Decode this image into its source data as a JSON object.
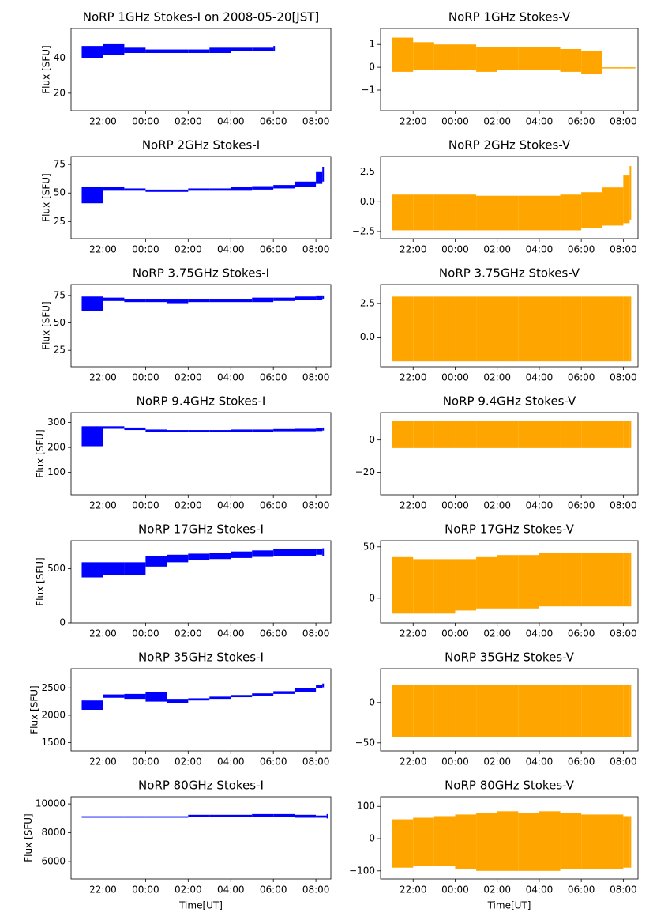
{
  "chart_data": [
    {
      "type": "band",
      "title": "NoRP 1GHz Stokes-I on 2008-05-20[JST]",
      "ylabel": "Flux [SFU]",
      "color": "#0000ff",
      "x": [
        21,
        22,
        23,
        24,
        25,
        26,
        27,
        28,
        29,
        30
      ],
      "low": [
        40,
        42,
        43,
        43,
        43,
        43,
        43,
        44,
        44,
        44
      ],
      "high": [
        47,
        48,
        46,
        45,
        45,
        45,
        46,
        46,
        46,
        47
      ],
      "xlim": [
        20.5,
        32.7
      ],
      "xticks": [
        {
          "value": 22,
          "label": "22:00"
        },
        {
          "value": 24,
          "label": "00:00"
        },
        {
          "value": 26,
          "label": "02:00"
        },
        {
          "value": 28,
          "label": "04:00"
        },
        {
          "value": 30,
          "label": "06:00"
        },
        {
          "value": 32,
          "label": "08:00"
        }
      ],
      "ylim": [
        10,
        57
      ],
      "yticks": [
        20,
        40
      ]
    },
    {
      "type": "band",
      "title": "NoRP 1GHz Stokes-V",
      "color": "#ffa500",
      "x": [
        21,
        22,
        23,
        24,
        25,
        26,
        27,
        28,
        29,
        30,
        31,
        32,
        32.5
      ],
      "low": [
        -0.2,
        -0.1,
        -0.1,
        -0.1,
        -0.2,
        -0.1,
        -0.1,
        -0.1,
        -0.2,
        -0.3,
        0,
        0,
        0
      ],
      "high": [
        1.3,
        1.1,
        1,
        1,
        0.9,
        0.9,
        0.9,
        0.9,
        0.8,
        0.7,
        0,
        0,
        0
      ],
      "xlim": [
        20.45,
        32.7
      ],
      "xticks": [
        {
          "value": 22,
          "label": "22:00"
        },
        {
          "value": 24,
          "label": "00:00"
        },
        {
          "value": 26,
          "label": "02:00"
        },
        {
          "value": 28,
          "label": "04:00"
        },
        {
          "value": 30,
          "label": "06:00"
        },
        {
          "value": 32,
          "label": "08:00"
        }
      ],
      "ylim": [
        -1.9,
        1.7
      ],
      "yticks": [
        {
          "value": -1,
          "label": "−1"
        },
        0,
        1
      ]
    },
    {
      "type": "band",
      "title": "NoRP 2GHz Stokes-I",
      "ylabel": "Flux [SFU]",
      "color": "#0000ff",
      "x": [
        21,
        22,
        23,
        24,
        25,
        26,
        27,
        28,
        29,
        30,
        31,
        32,
        32.3
      ],
      "low": [
        41,
        52,
        52,
        51,
        51,
        52,
        52,
        52,
        53,
        54,
        55,
        58,
        60
      ],
      "high": [
        55,
        55,
        54,
        53,
        53,
        54,
        54,
        55,
        56,
        57,
        60,
        69,
        73
      ],
      "xlim": [
        20.5,
        32.7
      ],
      "xticks": [
        {
          "value": 22,
          "label": "22:00"
        },
        {
          "value": 24,
          "label": "00:00"
        },
        {
          "value": 26,
          "label": "02:00"
        },
        {
          "value": 28,
          "label": "04:00"
        },
        {
          "value": 30,
          "label": "06:00"
        },
        {
          "value": 32,
          "label": "08:00"
        }
      ],
      "ylim": [
        10,
        82
      ],
      "yticks": [
        25,
        50,
        75
      ]
    },
    {
      "type": "band",
      "title": "NoRP 2GHz Stokes-V",
      "color": "#ffa500",
      "x": [
        21,
        22,
        23,
        24,
        25,
        26,
        27,
        28,
        29,
        30,
        31,
        32,
        32.3
      ],
      "low": [
        -2.4,
        -2.4,
        -2.4,
        -2.4,
        -2.4,
        -2.4,
        -2.4,
        -2.4,
        -2.4,
        -2.2,
        -2.0,
        -1.8,
        -1.5
      ],
      "high": [
        0.6,
        0.6,
        0.6,
        0.6,
        0.5,
        0.5,
        0.5,
        0.5,
        0.6,
        0.8,
        1.2,
        2.2,
        3.0
      ],
      "xlim": [
        20.45,
        32.7
      ],
      "xticks": [
        {
          "value": 22,
          "label": "22:00"
        },
        {
          "value": 24,
          "label": "00:00"
        },
        {
          "value": 26,
          "label": "02:00"
        },
        {
          "value": 28,
          "label": "04:00"
        },
        {
          "value": 30,
          "label": "06:00"
        },
        {
          "value": 32,
          "label": "08:00"
        }
      ],
      "ylim": [
        -3.1,
        3.8
      ],
      "yticks": [
        {
          "value": -2.5,
          "label": "−2.5"
        },
        {
          "value": 0,
          "label": "0.0"
        },
        2.5
      ]
    },
    {
      "type": "band",
      "title": "NoRP 3.75GHz Stokes-I",
      "ylabel": "Flux [SFU]",
      "color": "#0000ff",
      "x": [
        21,
        22,
        23,
        24,
        25,
        26,
        27,
        28,
        29,
        30,
        31,
        32,
        32.3
      ],
      "low": [
        61,
        70,
        69,
        69,
        68,
        69,
        69,
        69,
        69,
        70,
        71,
        71,
        72
      ],
      "high": [
        74,
        73,
        72,
        72,
        72,
        72,
        72,
        72,
        73,
        73,
        74,
        75,
        75
      ],
      "xlim": [
        20.5,
        32.7
      ],
      "xticks": [
        {
          "value": 22,
          "label": "22:00"
        },
        {
          "value": 24,
          "label": "00:00"
        },
        {
          "value": 26,
          "label": "02:00"
        },
        {
          "value": 28,
          "label": "04:00"
        },
        {
          "value": 30,
          "label": "06:00"
        },
        {
          "value": 32,
          "label": "08:00"
        }
      ],
      "ylim": [
        10,
        85
      ],
      "yticks": [
        25,
        50,
        75
      ]
    },
    {
      "type": "band",
      "title": "NoRP 3.75GHz Stokes-V",
      "color": "#ffa500",
      "x": [
        21,
        22,
        23,
        24,
        25,
        26,
        27,
        28,
        29,
        30,
        31,
        32,
        32.3
      ],
      "low": [
        -1.8,
        -1.8,
        -1.8,
        -1.8,
        -1.8,
        -1.8,
        -1.8,
        -1.8,
        -1.8,
        -1.8,
        -1.8,
        -1.8,
        -1.8
      ],
      "high": [
        3,
        3,
        3,
        3,
        3,
        3,
        3,
        3,
        3,
        3,
        3,
        3,
        3
      ],
      "xlim": [
        20.45,
        32.7
      ],
      "xticks": [
        {
          "value": 22,
          "label": "22:00"
        },
        {
          "value": 24,
          "label": "00:00"
        },
        {
          "value": 26,
          "label": "02:00"
        },
        {
          "value": 28,
          "label": "04:00"
        },
        {
          "value": 30,
          "label": "06:00"
        },
        {
          "value": 32,
          "label": "08:00"
        }
      ],
      "ylim": [
        -2.2,
        3.9
      ],
      "yticks": [
        {
          "value": 0,
          "label": "0.0"
        },
        2.5
      ]
    },
    {
      "type": "band",
      "title": "NoRP 9.4GHz Stokes-I",
      "ylabel": "Flux [SFU]",
      "color": "#0000ff",
      "x": [
        21,
        22,
        23,
        24,
        25,
        26,
        27,
        28,
        29,
        30,
        31,
        32,
        32.3
      ],
      "low": [
        205,
        275,
        270,
        262,
        262,
        262,
        262,
        263,
        263,
        265,
        265,
        266,
        268
      ],
      "high": [
        285,
        285,
        280,
        272,
        270,
        270,
        270,
        272,
        272,
        274,
        275,
        278,
        280
      ],
      "xlim": [
        20.5,
        32.7
      ],
      "xticks": [
        {
          "value": 22,
          "label": "22:00"
        },
        {
          "value": 24,
          "label": "00:00"
        },
        {
          "value": 26,
          "label": "02:00"
        },
        {
          "value": 28,
          "label": "04:00"
        },
        {
          "value": 30,
          "label": "06:00"
        },
        {
          "value": 32,
          "label": "08:00"
        }
      ],
      "ylim": [
        10,
        340
      ],
      "yticks": [
        100,
        200,
        300
      ]
    },
    {
      "type": "band",
      "title": "NoRP 9.4GHz Stokes-V",
      "color": "#ffa500",
      "x": [
        21,
        22,
        23,
        24,
        25,
        26,
        27,
        28,
        29,
        30,
        31,
        32,
        32.3
      ],
      "low": [
        -5,
        -5,
        -5,
        -5,
        -5,
        -5,
        -5,
        -5,
        -5,
        -5,
        -5,
        -5,
        -5
      ],
      "high": [
        12,
        12,
        12,
        12,
        12,
        12,
        12,
        12,
        12,
        12,
        12,
        12,
        12
      ],
      "xlim": [
        20.45,
        32.7
      ],
      "xticks": [
        {
          "value": 22,
          "label": "22:00"
        },
        {
          "value": 24,
          "label": "00:00"
        },
        {
          "value": 26,
          "label": "02:00"
        },
        {
          "value": 28,
          "label": "04:00"
        },
        {
          "value": 30,
          "label": "06:00"
        },
        {
          "value": 32,
          "label": "08:00"
        }
      ],
      "ylim": [
        -34,
        17
      ],
      "yticks": [
        {
          "value": -20,
          "label": "−20"
        },
        0
      ]
    },
    {
      "type": "band",
      "title": "NoRP 17GHz Stokes-I",
      "ylabel": "Flux [SFU]",
      "color": "#0000ff",
      "x": [
        21,
        22,
        23,
        24,
        25,
        26,
        27,
        28,
        29,
        30,
        31,
        32,
        32.3
      ],
      "low": [
        420,
        440,
        440,
        520,
        560,
        580,
        590,
        600,
        610,
        620,
        620,
        630,
        620
      ],
      "high": [
        560,
        560,
        560,
        620,
        630,
        640,
        650,
        660,
        670,
        680,
        680,
        680,
        690
      ],
      "xlim": [
        20.5,
        32.7
      ],
      "xticks": [
        {
          "value": 22,
          "label": "22:00"
        },
        {
          "value": 24,
          "label": "00:00"
        },
        {
          "value": 26,
          "label": "02:00"
        },
        {
          "value": 28,
          "label": "04:00"
        },
        {
          "value": 30,
          "label": "06:00"
        },
        {
          "value": 32,
          "label": "08:00"
        }
      ],
      "ylim": [
        0,
        760
      ],
      "yticks": [
        0,
        500
      ]
    },
    {
      "type": "band",
      "title": "NoRP 17GHz Stokes-V",
      "color": "#ffa500",
      "x": [
        21,
        22,
        23,
        24,
        25,
        26,
        27,
        28,
        29,
        30,
        31,
        32,
        32.3
      ],
      "low": [
        -15,
        -15,
        -15,
        -12,
        -10,
        -10,
        -10,
        -8,
        -8,
        -8,
        -8,
        -8,
        -8
      ],
      "high": [
        40,
        38,
        38,
        38,
        40,
        42,
        42,
        44,
        44,
        44,
        44,
        44,
        44
      ],
      "xlim": [
        20.45,
        32.7
      ],
      "xticks": [
        {
          "value": 22,
          "label": "22:00"
        },
        {
          "value": 24,
          "label": "00:00"
        },
        {
          "value": 26,
          "label": "02:00"
        },
        {
          "value": 28,
          "label": "04:00"
        },
        {
          "value": 30,
          "label": "06:00"
        },
        {
          "value": 32,
          "label": "08:00"
        }
      ],
      "ylim": [
        -24,
        56
      ],
      "yticks": [
        0,
        50
      ]
    },
    {
      "type": "band",
      "title": "NoRP 35GHz Stokes-I",
      "ylabel": "Flux [SFU]",
      "color": "#0000ff",
      "x": [
        21,
        22,
        23,
        24,
        25,
        26,
        27,
        28,
        29,
        30,
        31,
        32,
        32.3
      ],
      "low": [
        2100,
        2320,
        2300,
        2250,
        2220,
        2270,
        2300,
        2330,
        2360,
        2390,
        2430,
        2490,
        2510
      ],
      "high": [
        2270,
        2380,
        2390,
        2420,
        2300,
        2310,
        2340,
        2370,
        2400,
        2440,
        2490,
        2560,
        2580
      ],
      "xlim": [
        20.5,
        32.7
      ],
      "xticks": [
        {
          "value": 22,
          "label": "22:00"
        },
        {
          "value": 24,
          "label": "00:00"
        },
        {
          "value": 26,
          "label": "02:00"
        },
        {
          "value": 28,
          "label": "04:00"
        },
        {
          "value": 30,
          "label": "06:00"
        },
        {
          "value": 32,
          "label": "08:00"
        }
      ],
      "ylim": [
        1350,
        2850
      ],
      "yticks": [
        1500,
        2000,
        2500
      ]
    },
    {
      "type": "band",
      "title": "NoRP 35GHz Stokes-V",
      "color": "#ffa500",
      "x": [
        21,
        22,
        23,
        24,
        25,
        26,
        27,
        28,
        29,
        30,
        31,
        32,
        32.3
      ],
      "low": [
        -43,
        -43,
        -43,
        -43,
        -43,
        -43,
        -43,
        -43,
        -43,
        -43,
        -43,
        -43,
        -43
      ],
      "high": [
        22,
        22,
        22,
        22,
        22,
        22,
        22,
        22,
        22,
        22,
        22,
        22,
        22
      ],
      "xlim": [
        20.45,
        32.7
      ],
      "xticks": [
        {
          "value": 22,
          "label": "22:00"
        },
        {
          "value": 24,
          "label": "00:00"
        },
        {
          "value": 26,
          "label": "02:00"
        },
        {
          "value": 28,
          "label": "04:00"
        },
        {
          "value": 30,
          "label": "06:00"
        },
        {
          "value": 32,
          "label": "08:00"
        }
      ],
      "ylim": [
        -60,
        42
      ],
      "yticks": [
        {
          "value": -50,
          "label": "−50"
        },
        0
      ]
    },
    {
      "type": "band",
      "title": "NoRP 80GHz Stokes-I",
      "ylabel": "Flux [SFU]",
      "xlabel": "Time[UT]",
      "color": "#0000ff",
      "x": [
        21,
        22,
        23,
        24,
        25,
        26,
        27,
        28,
        29,
        30,
        31,
        32,
        32.5
      ],
      "low": [
        9050,
        9050,
        9050,
        9050,
        9050,
        9100,
        9100,
        9100,
        9100,
        9100,
        9050,
        9050,
        9000
      ],
      "high": [
        9150,
        9150,
        9150,
        9150,
        9150,
        9250,
        9250,
        9250,
        9300,
        9300,
        9250,
        9200,
        9300
      ],
      "xlim": [
        20.5,
        32.7
      ],
      "xticks": [
        {
          "value": 22,
          "label": "22:00"
        },
        {
          "value": 24,
          "label": "00:00"
        },
        {
          "value": 26,
          "label": "02:00"
        },
        {
          "value": 28,
          "label": "04:00"
        },
        {
          "value": 30,
          "label": "06:00"
        },
        {
          "value": 32,
          "label": "08:00"
        }
      ],
      "ylim": [
        4800,
        10500
      ],
      "yticks": [
        6000,
        8000,
        10000
      ]
    },
    {
      "type": "band",
      "title": "NoRP 80GHz Stokes-V",
      "xlabel": "Time[UT]",
      "color": "#ffa500",
      "x": [
        21,
        22,
        23,
        24,
        25,
        26,
        27,
        28,
        29,
        30,
        31,
        32,
        32.3
      ],
      "low": [
        -90,
        -85,
        -85,
        -95,
        -100,
        -100,
        -100,
        -100,
        -95,
        -95,
        -95,
        -90,
        -90
      ],
      "high": [
        60,
        65,
        70,
        75,
        80,
        85,
        80,
        85,
        80,
        75,
        75,
        70,
        70
      ],
      "xlim": [
        20.45,
        32.7
      ],
      "xticks": [
        {
          "value": 22,
          "label": "22:00"
        },
        {
          "value": 24,
          "label": "00:00"
        },
        {
          "value": 26,
          "label": "02:00"
        },
        {
          "value": 28,
          "label": "04:00"
        },
        {
          "value": 30,
          "label": "06:00"
        },
        {
          "value": 32,
          "label": "08:00"
        }
      ],
      "ylim": [
        -125,
        130
      ],
      "yticks": [
        {
          "value": -100,
          "label": "−100"
        },
        0,
        100
      ]
    }
  ]
}
